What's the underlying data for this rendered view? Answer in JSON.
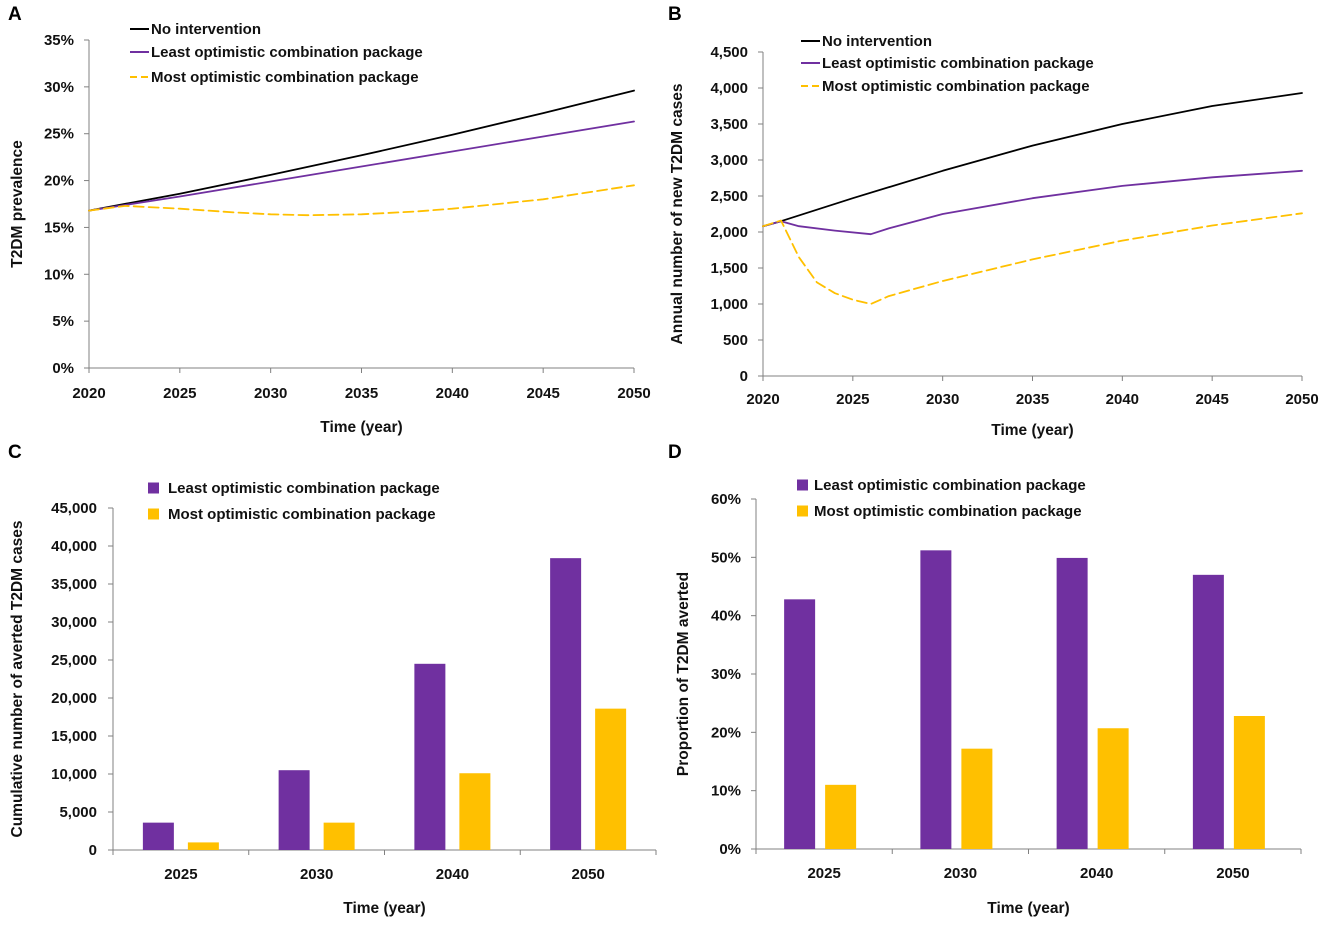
{
  "figure": {
    "colors": {
      "none": "#000000",
      "least": "#7030A0",
      "most": "#FFC000",
      "axis": "#808080"
    }
  },
  "chart_data": [
    {
      "id": "A",
      "type": "line",
      "letter": "A",
      "xlabel": "Time (year)",
      "ylabel": "T2DM prevalence",
      "xlim": [
        2020,
        2050
      ],
      "ylim": [
        0,
        35
      ],
      "xticks": [
        2020,
        2025,
        2030,
        2035,
        2040,
        2045,
        2050
      ],
      "xtick_labels": [
        "2020",
        "2025",
        "2030",
        "2035",
        "2040",
        "2045",
        "2050"
      ],
      "yticks": [
        0,
        5,
        10,
        15,
        20,
        25,
        30,
        35
      ],
      "ytick_labels": [
        "0%",
        "5%",
        "10%",
        "15%",
        "20%",
        "25%",
        "30%",
        "35%"
      ],
      "legend": [
        "No intervention",
        "Least optimistic combination package",
        "Most optimistic combination package"
      ],
      "series": [
        {
          "name": "No intervention",
          "style": "solid",
          "color": "#000000",
          "x": [
            2020,
            2025,
            2030,
            2035,
            2040,
            2045,
            2050
          ],
          "y": [
            16.8,
            18.6,
            20.6,
            22.7,
            24.9,
            27.2,
            29.6
          ]
        },
        {
          "name": "Least optimistic combination package",
          "style": "solid",
          "color": "#7030A0",
          "x": [
            2020,
            2025,
            2030,
            2035,
            2040,
            2045,
            2050
          ],
          "y": [
            16.8,
            18.3,
            19.9,
            21.5,
            23.1,
            24.7,
            26.3
          ]
        },
        {
          "name": "Most optimistic combination package",
          "style": "dashed",
          "color": "#FFC000",
          "x": [
            2020,
            2022,
            2025,
            2028,
            2030,
            2032,
            2035,
            2038,
            2040,
            2045,
            2050
          ],
          "y": [
            16.8,
            17.3,
            17.0,
            16.6,
            16.4,
            16.3,
            16.4,
            16.7,
            17.0,
            18.0,
            19.5
          ]
        }
      ]
    },
    {
      "id": "B",
      "type": "line",
      "letter": "B",
      "xlabel": "Time (year)",
      "ylabel": "Annual number of new T2DM cases",
      "xlim": [
        2020,
        2050
      ],
      "ylim": [
        0,
        4500
      ],
      "xticks": [
        2020,
        2025,
        2030,
        2035,
        2040,
        2045,
        2050
      ],
      "xtick_labels": [
        "2020",
        "2025",
        "2030",
        "2035",
        "2040",
        "2045",
        "2050"
      ],
      "yticks": [
        0,
        500,
        1000,
        1500,
        2000,
        2500,
        3000,
        3500,
        4000,
        4500
      ],
      "ytick_labels": [
        "0",
        "500",
        "1,000",
        "1,500",
        "2,000",
        "2,500",
        "3,000",
        "3,500",
        "4,000",
        "4,500"
      ],
      "legend": [
        "No intervention",
        "Least optimistic combination package",
        "Most optimistic combination package"
      ],
      "series": [
        {
          "name": "No intervention",
          "style": "solid",
          "color": "#000000",
          "x": [
            2020,
            2021,
            2025,
            2030,
            2035,
            2040,
            2045,
            2050
          ],
          "y": [
            2080,
            2150,
            2470,
            2850,
            3200,
            3500,
            3750,
            3930
          ]
        },
        {
          "name": "Least optimistic combination package",
          "style": "solid",
          "color": "#7030A0",
          "x": [
            2020,
            2021,
            2022,
            2024,
            2026,
            2027,
            2030,
            2035,
            2040,
            2045,
            2050
          ],
          "y": [
            2080,
            2150,
            2080,
            2020,
            1970,
            2050,
            2250,
            2470,
            2640,
            2760,
            2850
          ]
        },
        {
          "name": "Most optimistic combination package",
          "style": "dashed",
          "color": "#FFC000",
          "x": [
            2020,
            2021,
            2022,
            2023,
            2024,
            2025,
            2026,
            2027,
            2030,
            2035,
            2040,
            2045,
            2050
          ],
          "y": [
            2080,
            2160,
            1650,
            1300,
            1150,
            1060,
            1000,
            1110,
            1320,
            1620,
            1880,
            2090,
            2260
          ]
        }
      ]
    },
    {
      "id": "C",
      "type": "bar",
      "letter": "C",
      "xlabel": "Time (year)",
      "ylabel": "Cumulative number of averted T2DM cases",
      "ylim": [
        0,
        45000
      ],
      "yticks": [
        0,
        5000,
        10000,
        15000,
        20000,
        25000,
        30000,
        35000,
        40000,
        45000
      ],
      "ytick_labels": [
        "0",
        "5,000",
        "10,000",
        "15,000",
        "20,000",
        "25,000",
        "30,000",
        "35,000",
        "40,000",
        "45,000"
      ],
      "categories": [
        "2025",
        "2030",
        "2040",
        "2050"
      ],
      "legend": [
        "Least optimistic combination package",
        "Most optimistic combination package"
      ],
      "series": [
        {
          "name": "Least optimistic combination package",
          "color": "#7030A0",
          "values": [
            3600,
            10500,
            24500,
            38400
          ]
        },
        {
          "name": "Most optimistic combination package",
          "color": "#FFC000",
          "values": [
            1000,
            3600,
            10100,
            18600
          ]
        }
      ]
    },
    {
      "id": "D",
      "type": "bar",
      "letter": "D",
      "xlabel": "Time (year)",
      "ylabel": "Proportion of T2DM averted",
      "ylim": [
        0,
        60
      ],
      "yticks": [
        0,
        10,
        20,
        30,
        40,
        50,
        60
      ],
      "ytick_labels": [
        "0%",
        "10%",
        "20%",
        "30%",
        "40%",
        "50%",
        "60%"
      ],
      "categories": [
        "2025",
        "2030",
        "2040",
        "2050"
      ],
      "legend": [
        "Least optimistic combination package",
        "Most optimistic combination package"
      ],
      "series": [
        {
          "name": "Least optimistic combination package",
          "color": "#7030A0",
          "values": [
            42.8,
            51.2,
            49.9,
            47.0
          ]
        },
        {
          "name": "Most optimistic combination package",
          "color": "#FFC000",
          "values": [
            11.0,
            17.2,
            20.7,
            22.8
          ]
        }
      ]
    }
  ]
}
